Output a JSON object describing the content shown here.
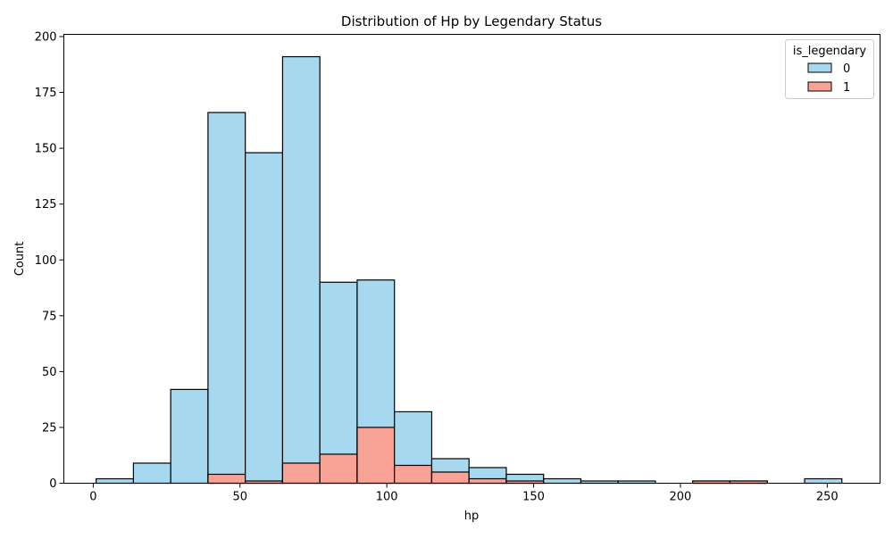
{
  "chart_data": {
    "type": "bar",
    "subtype": "stacked histogram",
    "title": "Distribution of Hp by Legendary Status",
    "xlabel": "hp",
    "ylabel": "Count",
    "xlim": [
      -10,
      268
    ],
    "ylim": [
      0,
      201
    ],
    "xticks": [
      0,
      50,
      100,
      150,
      200,
      250
    ],
    "yticks": [
      0,
      25,
      50,
      75,
      100,
      125,
      150,
      175,
      200
    ],
    "grid": false,
    "bin_edges": [
      1,
      13.7,
      26.4,
      39.1,
      51.8,
      64.5,
      77.2,
      89.9,
      102.6,
      115.3,
      128.0,
      140.7,
      153.4,
      166.1,
      178.8,
      191.5,
      204.2,
      216.9,
      229.6,
      242.3,
      255
    ],
    "legend": {
      "title": "is_legendary",
      "placement": "top-right",
      "entries": [
        "0",
        "1"
      ]
    },
    "series": [
      {
        "name": "0",
        "color": "#a6d9f0",
        "values": [
          2,
          9,
          42,
          162,
          147,
          182,
          77,
          66,
          24,
          6,
          5,
          3,
          2,
          1,
          1,
          0,
          0,
          0,
          0,
          2
        ]
      },
      {
        "name": "1",
        "color": "#f9a397",
        "values": [
          0,
          0,
          0,
          4,
          1,
          9,
          13,
          25,
          8,
          5,
          2,
          1,
          0,
          0,
          0,
          0,
          1,
          1,
          0,
          0
        ]
      }
    ]
  }
}
